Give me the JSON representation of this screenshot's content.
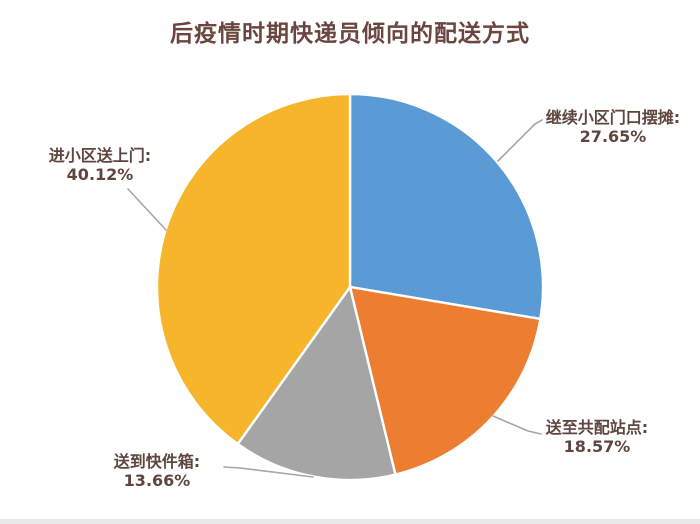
{
  "title": "后疫情时期快递员倾向的配送方式",
  "colors": {
    "background": "#ffffff",
    "title_text": "#6b463e",
    "label_text": "#5e463e",
    "leader_line": "#a6a6a6",
    "slice_divider": "#ffffff"
  },
  "chart_data": {
    "type": "pie",
    "title": "后疫情时期快递员倾向的配送方式",
    "start_angle_deg": 0,
    "direction": "clockwise",
    "legend": "none",
    "labels_style": "outside callout with leader lines",
    "slices": [
      {
        "id": "stall",
        "label": "继续小区门口摆摊:",
        "value": 27.65,
        "value_label": "27.65%",
        "color": "#5B9BD5"
      },
      {
        "id": "station",
        "label": "送至共配站点:",
        "value": 18.57,
        "value_label": "18.57%",
        "color": "#ED7D31"
      },
      {
        "id": "locker",
        "label": "送到快件箱:",
        "value": 13.66,
        "value_label": "13.66%",
        "color": "#A5A5A5"
      },
      {
        "id": "door",
        "label": "进小区送上门:",
        "value": 40.12,
        "value_label": "40.12%",
        "color": "#F7B52C"
      }
    ]
  }
}
